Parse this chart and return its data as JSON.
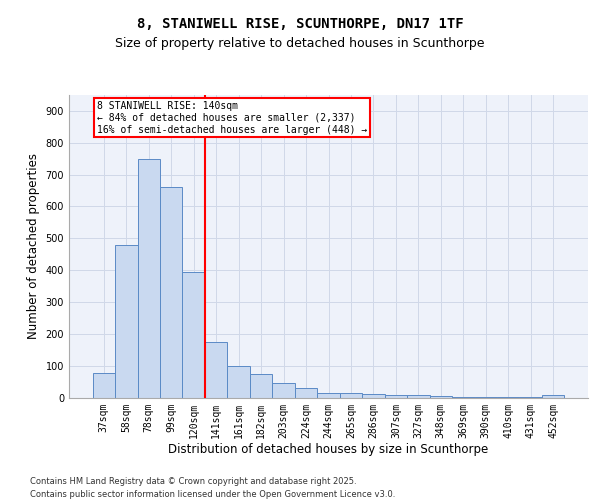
{
  "title_line1": "8, STANIWELL RISE, SCUNTHORPE, DN17 1TF",
  "title_line2": "Size of property relative to detached houses in Scunthorpe",
  "xlabel": "Distribution of detached houses by size in Scunthorpe",
  "ylabel": "Number of detached properties",
  "categories": [
    "37sqm",
    "58sqm",
    "78sqm",
    "99sqm",
    "120sqm",
    "141sqm",
    "161sqm",
    "182sqm",
    "203sqm",
    "224sqm",
    "244sqm",
    "265sqm",
    "286sqm",
    "307sqm",
    "327sqm",
    "348sqm",
    "369sqm",
    "390sqm",
    "410sqm",
    "431sqm",
    "452sqm"
  ],
  "values": [
    78,
    478,
    750,
    660,
    395,
    175,
    100,
    75,
    45,
    30,
    15,
    13,
    10,
    8,
    7,
    5,
    3,
    2,
    1,
    1,
    7
  ],
  "bar_color": "#c9d9f0",
  "bar_edge_color": "#5a8ac6",
  "vline_color": "red",
  "vline_index": 5,
  "annotation_text": "8 STANIWELL RISE: 140sqm\n← 84% of detached houses are smaller (2,337)\n16% of semi-detached houses are larger (448) →",
  "ylim": [
    0,
    950
  ],
  "yticks": [
    0,
    100,
    200,
    300,
    400,
    500,
    600,
    700,
    800,
    900
  ],
  "grid_color": "#d0d8e8",
  "background_color": "#eef2fa",
  "footer_line1": "Contains HM Land Registry data © Crown copyright and database right 2025.",
  "footer_line2": "Contains public sector information licensed under the Open Government Licence v3.0.",
  "title_fontsize": 10,
  "subtitle_fontsize": 9,
  "tick_fontsize": 7,
  "label_fontsize": 8.5,
  "footer_fontsize": 6
}
